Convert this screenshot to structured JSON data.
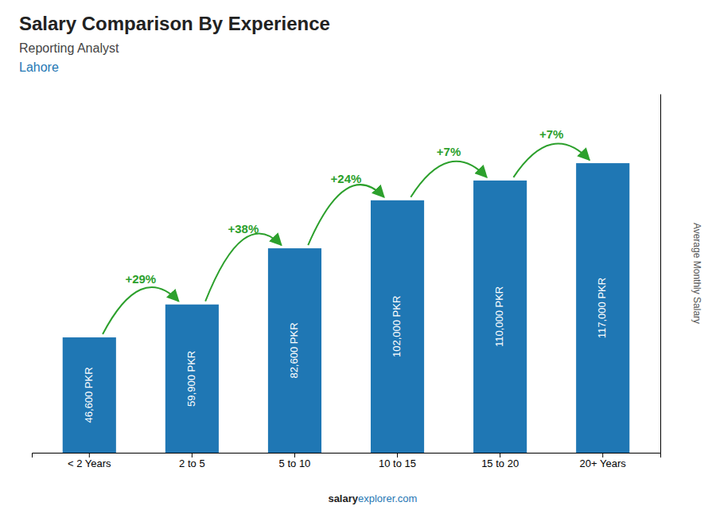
{
  "chart_data": {
    "type": "bar",
    "title": "Salary Comparison By Experience",
    "subtitle": "Reporting Analyst",
    "ylabel": "Average Monthly Salary",
    "categories": [
      "< 2 Years",
      "2 to 5",
      "5 to 10",
      "10 to 15",
      "15 to 20",
      "20+ Years"
    ],
    "values": [
      46600,
      59900,
      82600,
      102000,
      110000,
      117000
    ],
    "value_labels": [
      "46,600 PKR",
      "59,900 PKR",
      "82,600 PKR",
      "102,000 PKR",
      "110,000 PKR",
      "117,000 PKR"
    ],
    "data_labels": true,
    "ylim": [
      0,
      145000
    ],
    "tick_labels": "x",
    "grid": false,
    "annotations": {
      "city": "Lahore",
      "footer": [
        "salary",
        "explorer.com"
      ],
      "changes": [
        "+29%",
        "+38%",
        "+24%",
        "+7%",
        "+7%"
      ]
    }
  }
}
